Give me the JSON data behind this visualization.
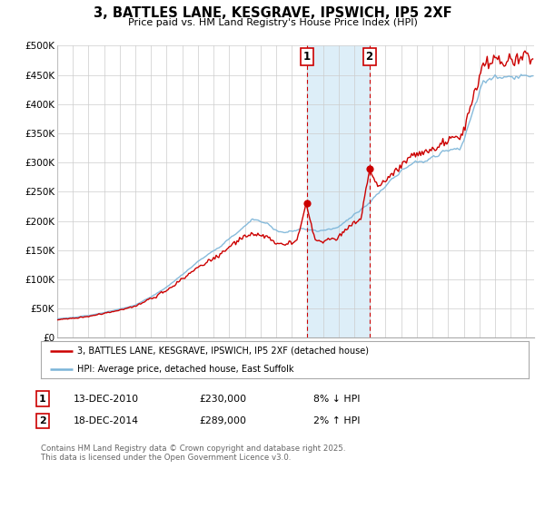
{
  "title": "3, BATTLES LANE, KESGRAVE, IPSWICH, IP5 2XF",
  "subtitle": "Price paid vs. HM Land Registry's House Price Index (HPI)",
  "ylim": [
    0,
    500000
  ],
  "yticks": [
    0,
    50000,
    100000,
    150000,
    200000,
    250000,
    300000,
    350000,
    400000,
    450000,
    500000
  ],
  "ytick_labels": [
    "£0",
    "£50K",
    "£100K",
    "£150K",
    "£200K",
    "£250K",
    "£300K",
    "£350K",
    "£400K",
    "£450K",
    "£500K"
  ],
  "xlim_start": 1995.0,
  "xlim_end": 2025.5,
  "hpi_color": "#7ab4d8",
  "price_color": "#cc0000",
  "marker_color": "#cc0000",
  "vline_color": "#cc0000",
  "shade_color": "#ddeef8",
  "transaction1_x": 2010.95,
  "transaction1_y": 230000,
  "transaction2_x": 2014.96,
  "transaction2_y": 289000,
  "legend_label_price": "3, BATTLES LANE, KESGRAVE, IPSWICH, IP5 2XF (detached house)",
  "legend_label_hpi": "HPI: Average price, detached house, East Suffolk",
  "table_row1": [
    "1",
    "13-DEC-2010",
    "£230,000",
    "8% ↓ HPI"
  ],
  "table_row2": [
    "2",
    "18-DEC-2014",
    "£289,000",
    "2% ↑ HPI"
  ],
  "footnote": "Contains HM Land Registry data © Crown copyright and database right 2025.\nThis data is licensed under the Open Government Licence v3.0.",
  "background_color": "#ffffff",
  "grid_color": "#cccccc"
}
